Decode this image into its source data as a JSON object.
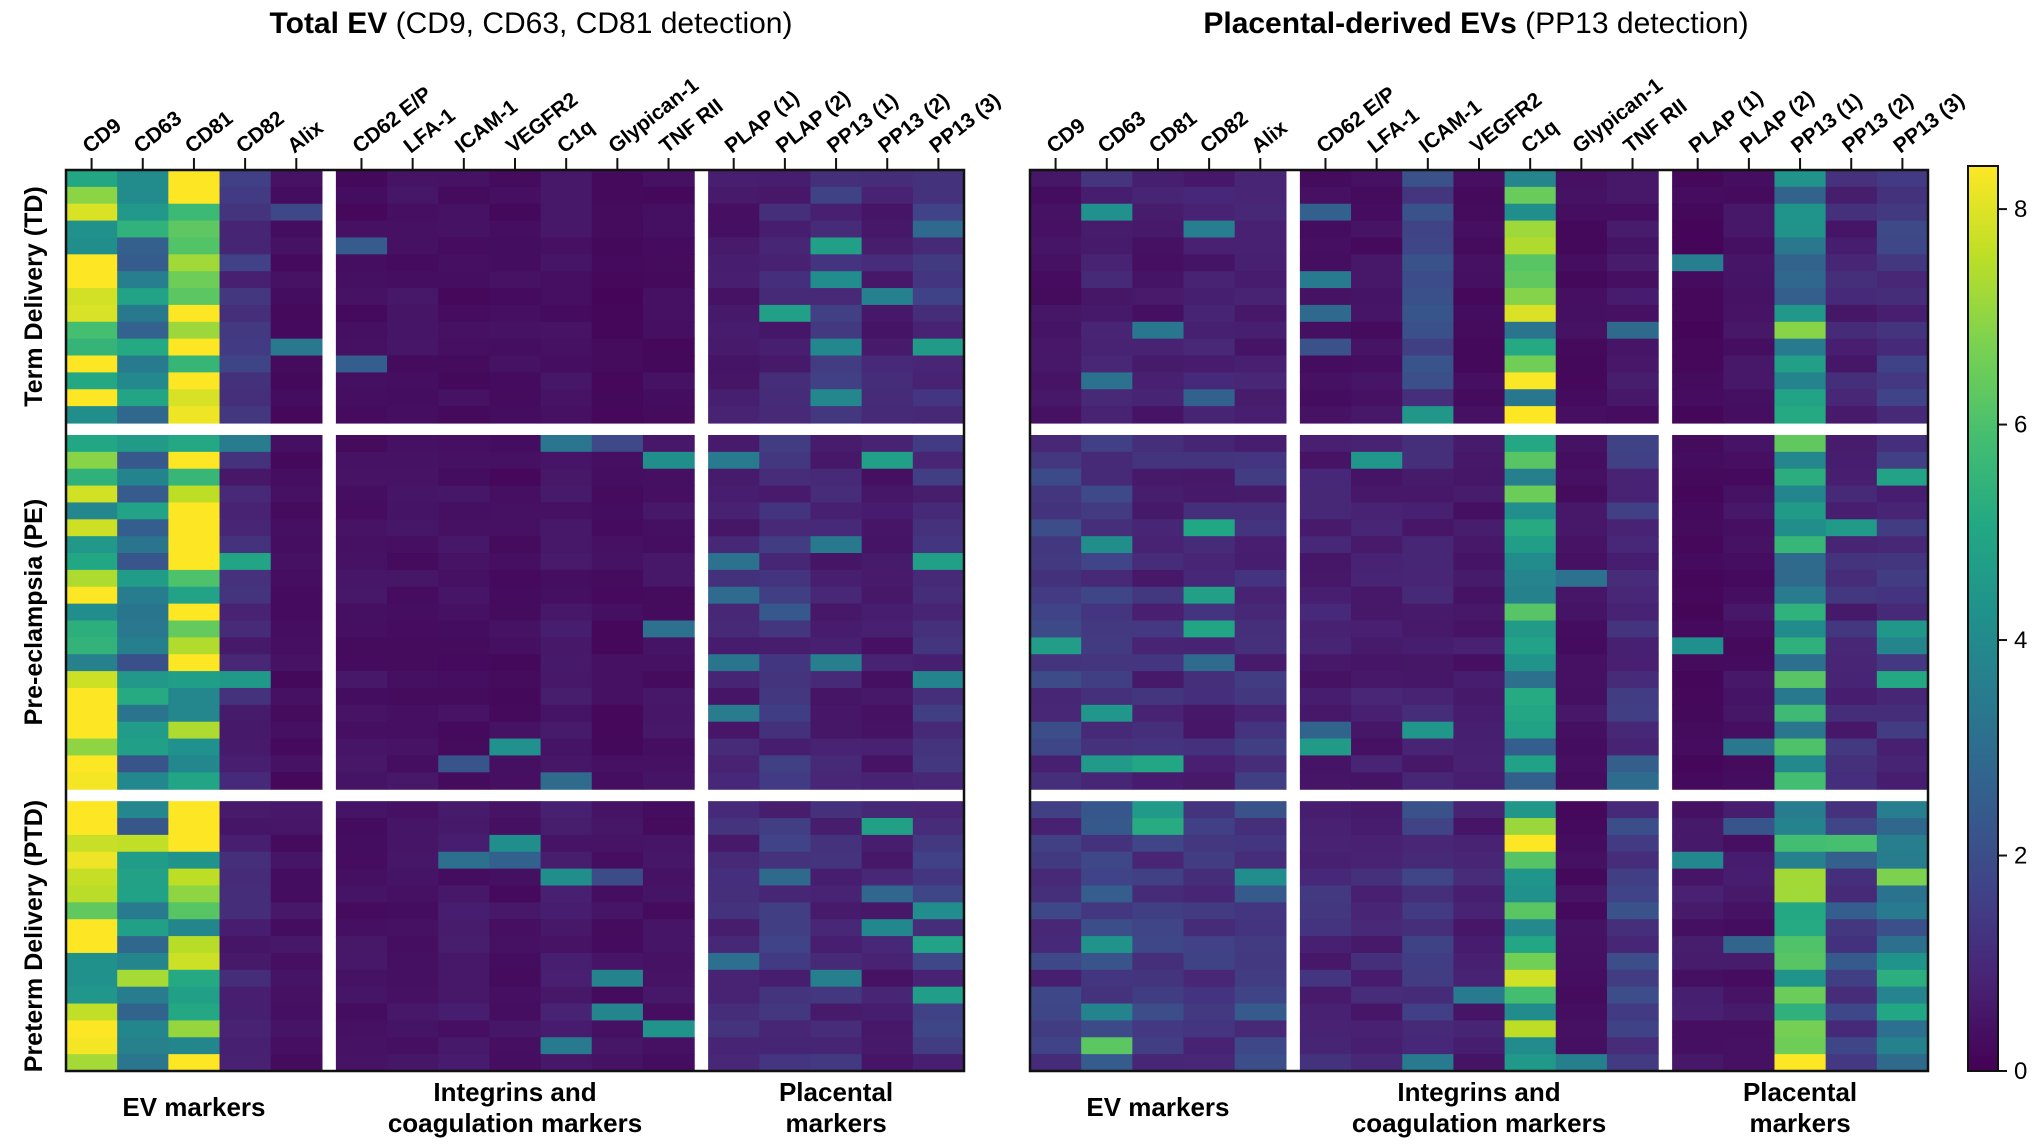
{
  "chart_data": [
    {
      "type": "heatmap",
      "title_bold": "Total EV",
      "title_rest": "(CD9, CD63, CD81 detection)",
      "columns": [
        "CD9",
        "CD63",
        "CD81",
        "CD82",
        "Alix",
        "CD62 E/P",
        "LFA-1",
        "ICAM-1",
        "VEGFR2",
        "C1q",
        "Glypican-1",
        "TNF RII",
        "PLAP (1)",
        "PLAP (2)",
        "PP13 (1)",
        "PP13 (2)",
        "PP13 (3)"
      ],
      "column_groups": [
        {
          "label": "EV markers",
          "start": 0,
          "end": 4
        },
        {
          "label": "Integrins and coagulation markers",
          "start": 5,
          "end": 11
        },
        {
          "label": "Placental markers",
          "start": 12,
          "end": 16
        }
      ],
      "row_groups": [
        {
          "label": "Term Delivery (TD)",
          "rows": 15
        },
        {
          "label": "Pre-eclampsia (PE)",
          "rows": 21
        },
        {
          "label": "Preterm Delivery (PTD)",
          "rows": 16
        }
      ],
      "group_profiles": [
        [
          7.0,
          4.0,
          6.8,
          1.2,
          0.3,
          0.3,
          0.4,
          0.3,
          0.3,
          0.4,
          0.2,
          0.3,
          0.6,
          0.9,
          1.2,
          0.8,
          1.2
        ],
        [
          6.6,
          3.6,
          6.9,
          0.9,
          0.3,
          0.4,
          0.4,
          0.4,
          0.3,
          0.5,
          0.3,
          0.4,
          0.9,
          1.1,
          0.8,
          0.6,
          1.1
        ],
        [
          6.9,
          3.4,
          7.0,
          0.8,
          0.4,
          0.4,
          0.4,
          0.5,
          0.4,
          0.6,
          0.4,
          0.4,
          0.9,
          1.2,
          1.0,
          0.7,
          1.3
        ]
      ],
      "colorbar": {
        "min": 0,
        "max": 8.4,
        "ticks": [
          0,
          2,
          4,
          6,
          8
        ],
        "colormap": "viridis"
      }
    },
    {
      "type": "heatmap",
      "title_bold": "Placental-derived EVs",
      "title_rest": "(PP13 detection)",
      "columns": [
        "CD9",
        "CD63",
        "CD81",
        "CD82",
        "Alix",
        "CD62 E/P",
        "LFA-1",
        "ICAM-1",
        "VEGFR2",
        "C1q",
        "Glypican-1",
        "TNF RII",
        "PLAP (1)",
        "PLAP (2)",
        "PP13 (1)",
        "PP13 (2)",
        "PP13 (3)"
      ],
      "column_groups": [
        {
          "label": "EV markers",
          "start": 0,
          "end": 4
        },
        {
          "label": "Integrins and coagulation markers",
          "start": 5,
          "end": 11
        },
        {
          "label": "Placental markers",
          "start": 12,
          "end": 16
        }
      ],
      "row_groups": [
        {
          "label": "Term Delivery (TD)",
          "rows": 15
        },
        {
          "label": "Pre-eclampsia (PE)",
          "rows": 21
        },
        {
          "label": "Preterm Delivery (PTD)",
          "rows": 16
        }
      ],
      "group_profiles": [
        [
          0.4,
          0.9,
          0.6,
          0.7,
          0.7,
          0.3,
          0.4,
          1.6,
          0.3,
          5.8,
          0.3,
          0.5,
          0.2,
          0.4,
          3.6,
          0.9,
          1.3
        ],
        [
          1.4,
          1.5,
          1.0,
          0.9,
          1.1,
          0.7,
          0.7,
          0.9,
          0.6,
          4.5,
          0.4,
          1.2,
          0.2,
          0.4,
          4.6,
          1.0,
          1.2
        ],
        [
          1.3,
          1.8,
          1.4,
          1.3,
          1.7,
          1.0,
          0.9,
          1.5,
          0.8,
          5.6,
          0.3,
          1.5,
          0.6,
          0.5,
          5.0,
          1.8,
          3.5
        ]
      ],
      "colorbar": {
        "min": 0,
        "max": 8.4,
        "ticks": [
          0,
          2,
          4,
          6,
          8
        ],
        "colormap": "viridis"
      }
    }
  ]
}
